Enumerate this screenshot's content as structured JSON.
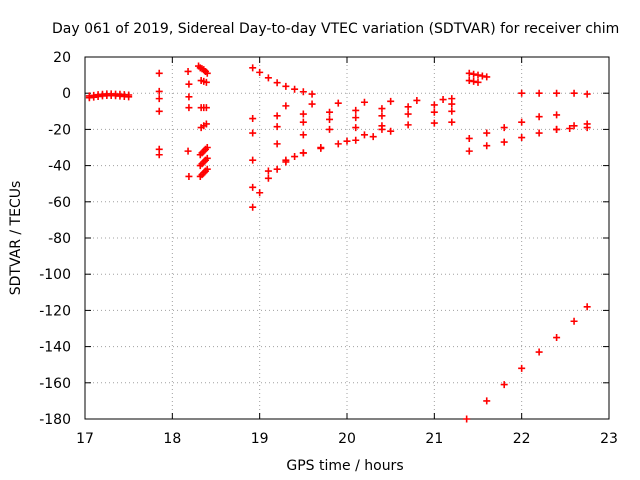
{
  "chart_data": {
    "type": "scatter",
    "title": "Day 061 of 2019, Sidereal Day-to-day VTEC variation (SDTVAR) for receiver chim",
    "xlabel": "GPS time / hours",
    "ylabel": "SDTVAR / TECUs",
    "xlim": [
      17,
      23
    ],
    "ylim": [
      -180,
      20
    ],
    "xticks": [
      "17",
      "18",
      "19",
      "20",
      "21",
      "22",
      "23"
    ],
    "yticks": [
      "20",
      "0",
      "-20",
      "-40",
      "-60",
      "-80",
      "-100",
      "-120",
      "-140",
      "-160",
      "-180"
    ],
    "grid": true,
    "marker": "+",
    "color": "#ff0000",
    "series": [
      {
        "name": "track-a",
        "x": [
          17.05,
          17.1,
          17.15,
          17.2,
          17.25,
          17.3,
          17.35,
          17.4,
          17.45,
          17.5
        ],
        "y": [
          -1.5,
          -1.2,
          -0.8,
          -0.6,
          -0.4,
          -0.4,
          -0.5,
          -0.6,
          -0.8,
          -1.0
        ]
      },
      {
        "name": "track-b",
        "x": [
          17.05,
          17.1,
          17.15,
          17.2,
          17.25,
          17.3,
          17.35,
          17.4,
          17.45,
          17.5
        ],
        "y": [
          -2.5,
          -2.2,
          -1.8,
          -1.5,
          -1.3,
          -1.3,
          -1.4,
          -1.6,
          -1.8,
          -2.0
        ]
      },
      {
        "name": "sparse-1785",
        "x": [
          17.85,
          17.85,
          17.85,
          17.85,
          17.85,
          17.85
        ],
        "y": [
          11,
          1,
          -3,
          -10,
          -31,
          -34
        ]
      },
      {
        "name": "sparse-1819",
        "x": [
          18.18,
          18.19,
          18.19,
          18.19,
          18.18,
          18.19
        ],
        "y": [
          12,
          5,
          -2,
          -8,
          -32,
          -46
        ]
      },
      {
        "name": "track-c",
        "x": [
          18.3,
          18.32,
          18.34,
          18.36,
          18.38,
          18.4
        ],
        "y": [
          15,
          14,
          13.5,
          13,
          12,
          11
        ]
      },
      {
        "name": "track-d",
        "x": [
          18.33,
          18.36,
          18.39
        ],
        "y": [
          7,
          6.5,
          6
        ]
      },
      {
        "name": "track-e",
        "x": [
          18.33,
          18.36,
          18.39
        ],
        "y": [
          -8,
          -8,
          -8
        ]
      },
      {
        "name": "track-f",
        "x": [
          18.33,
          18.36,
          18.39
        ],
        "y": [
          -19,
          -18,
          -17
        ]
      },
      {
        "name": "track-g",
        "x": [
          18.32,
          18.34,
          18.36,
          18.38,
          18.4
        ],
        "y": [
          -34,
          -33,
          -32,
          -31,
          -30
        ]
      },
      {
        "name": "track-h",
        "x": [
          18.32,
          18.34,
          18.36,
          18.38,
          18.4
        ],
        "y": [
          -40,
          -39,
          -38,
          -37,
          -36
        ]
      },
      {
        "name": "track-i",
        "x": [
          18.32,
          18.34,
          18.36,
          18.38,
          18.4
        ],
        "y": [
          -46,
          -45,
          -44,
          -43,
          -42
        ]
      },
      {
        "name": "arc-down",
        "x": [
          18.92,
          19.0,
          19.1,
          19.2,
          19.3,
          19.4,
          19.5,
          19.6
        ],
        "y": [
          14,
          11.5,
          8.5,
          5.8,
          3.8,
          2.2,
          0.8,
          -0.5
        ]
      },
      {
        "name": "band-1",
        "x": [
          19.3,
          19.6,
          19.9,
          20.2,
          20.5,
          20.8,
          21.1,
          21.2
        ],
        "y": [
          -7,
          -6,
          -5.5,
          -5,
          -4.5,
          -4,
          -3.5,
          -3
        ]
      },
      {
        "name": "band-2",
        "x": [
          18.92,
          19.2,
          19.5,
          19.8,
          20.1,
          20.4,
          20.7,
          21.0,
          21.2
        ],
        "y": [
          -14,
          -12.5,
          -11.5,
          -10.5,
          -9.5,
          -8.5,
          -7.5,
          -6.5,
          -6
        ]
      },
      {
        "name": "band-3",
        "x": [
          18.92,
          19.2,
          19.5,
          19.8,
          20.1,
          20.4,
          20.7,
          21.0,
          21.2
        ],
        "y": [
          -22,
          -18.5,
          -16,
          -14.5,
          -13.5,
          -12.5,
          -11.5,
          -10.5,
          -10
        ]
      },
      {
        "name": "band-4",
        "x": [
          18.92,
          19.2,
          19.5,
          19.8,
          20.1,
          20.4,
          20.7,
          21.0,
          21.2
        ],
        "y": [
          -37,
          -28,
          -23,
          -20,
          -19,
          -18,
          -17.5,
          -16.5,
          -16
        ]
      },
      {
        "name": "band-5",
        "x": [
          18.92,
          19.1,
          19.3,
          19.5,
          19.7,
          20.0,
          20.2,
          20.4
        ],
        "y": [
          -52,
          -43,
          -37,
          -33,
          -30.5,
          -26.5,
          -23,
          -20
        ]
      },
      {
        "name": "band-6",
        "x": [
          18.92,
          19.0,
          19.1,
          19.2,
          19.3,
          19.4,
          19.5,
          19.7,
          19.9,
          20.1,
          20.3,
          20.5
        ],
        "y": [
          -63,
          -55,
          -47,
          -42,
          -38,
          -35,
          -33,
          -30,
          -28,
          -26,
          -24,
          -21
        ]
      },
      {
        "name": "track-late-1",
        "x": [
          21.4,
          21.45,
          21.5,
          21.55,
          21.6
        ],
        "y": [
          11,
          10.5,
          10,
          9.5,
          9
        ]
      },
      {
        "name": "track-late-2",
        "x": [
          21.4,
          21.45,
          21.5
        ],
        "y": [
          7,
          6.5,
          6
        ]
      },
      {
        "name": "track-late-3",
        "x": [
          22.0,
          22.2,
          22.4,
          22.6,
          22.75
        ],
        "y": [
          0,
          0,
          0,
          0,
          -0.5
        ]
      },
      {
        "name": "track-late-4",
        "x": [
          21.4,
          21.6,
          21.8,
          22.0,
          22.2,
          22.4
        ],
        "y": [
          -25,
          -22,
          -19,
          -16,
          -13,
          -12
        ]
      },
      {
        "name": "track-late-5",
        "x": [
          21.4,
          21.6,
          21.8,
          22.0,
          22.2,
          22.4,
          22.6,
          22.75
        ],
        "y": [
          -32,
          -29,
          -27,
          -24.5,
          -22,
          -20,
          -18,
          -17
        ]
      },
      {
        "name": "track-late-6",
        "x": [
          22.4,
          22.55,
          22.75
        ],
        "y": [
          -20,
          -19.5,
          -19
        ]
      },
      {
        "name": "track-bottom",
        "x": [
          21.37,
          21.6,
          21.8,
          22.0,
          22.2,
          22.4,
          22.6,
          22.75
        ],
        "y": [
          -180,
          -170,
          -161,
          -152,
          -143,
          -135,
          -126,
          -118
        ]
      }
    ]
  }
}
